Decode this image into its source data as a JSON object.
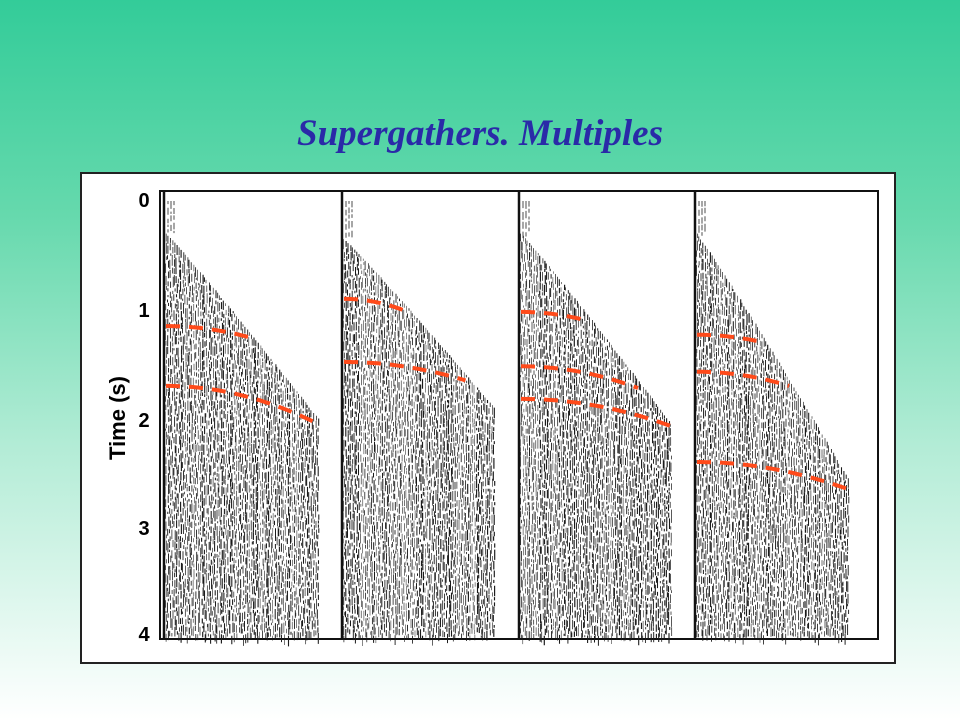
{
  "slide": {
    "title": "Supergathers. Multiples"
  },
  "axis": {
    "label": "Time (s)",
    "ticks": [
      {
        "value": 0,
        "label": "0"
      },
      {
        "value": 1,
        "label": "1"
      },
      {
        "value": 2,
        "label": "2"
      },
      {
        "value": 3,
        "label": "3"
      },
      {
        "value": 4,
        "label": "4"
      }
    ],
    "range": [
      0,
      4
    ]
  },
  "colors": {
    "background_top": "#33cc99",
    "background_bottom": "#ffffff",
    "title": "#2a2aa8",
    "multiple_marker": "#ff4a1a",
    "trace_ink": "#1a1a1a"
  },
  "gathers": [
    {
      "name": "supergather-1",
      "mute_start_time": 0.3,
      "mute_end_time": 2.0,
      "multiples": [
        {
          "t_near": 1.15,
          "t_far": 1.25
        },
        {
          "t_near": 1.7,
          "t_far": 2.05
        }
      ]
    },
    {
      "name": "supergather-2",
      "mute_start_time": 0.35,
      "mute_end_time": 1.9,
      "multiples": [
        {
          "t_near": 0.9,
          "t_far": 1.0
        },
        {
          "t_near": 1.48,
          "t_far": 1.65
        }
      ]
    },
    {
      "name": "supergather-3",
      "mute_start_time": 0.3,
      "mute_end_time": 2.05,
      "multiples": [
        {
          "t_near": 1.02,
          "t_far": 1.1
        },
        {
          "t_near": 1.52,
          "t_far": 1.72
        },
        {
          "t_near": 1.82,
          "t_far": 2.07
        }
      ]
    },
    {
      "name": "supergather-4",
      "mute_start_time": 0.3,
      "mute_end_time": 2.55,
      "multiples": [
        {
          "t_near": 1.23,
          "t_far": 1.3
        },
        {
          "t_near": 1.57,
          "t_far": 1.7
        },
        {
          "t_near": 2.4,
          "t_far": 2.65
        }
      ]
    }
  ]
}
